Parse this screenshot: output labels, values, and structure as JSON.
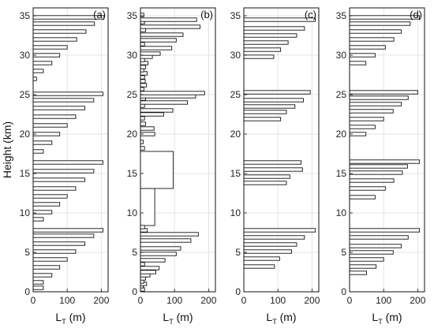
{
  "chart_data": [
    {
      "type": "bar",
      "orientation": "horizontal",
      "panel_label": "(a)",
      "xlabel_main": "L",
      "xlabel_sub": "T",
      "xlabel_unit": " (m)",
      "ylabel": "Height (km)",
      "xlim": [
        0,
        220
      ],
      "ylim": [
        0,
        36
      ],
      "xticks": [
        "0",
        "100",
        "200"
      ],
      "yticks": [
        "0",
        "5",
        "10",
        "15",
        "20",
        "25",
        "30",
        "35"
      ],
      "grid": true,
      "bar_height": 0.22,
      "bars": [
        {
          "y": 0.5,
          "value": 30
        },
        {
          "y": 1.2,
          "value": 30
        },
        {
          "y": 2.1,
          "value": 55
        },
        {
          "y": 3.1,
          "value": 78
        },
        {
          "y": 4.1,
          "value": 100
        },
        {
          "y": 5.1,
          "value": 125
        },
        {
          "y": 6.1,
          "value": 152
        },
        {
          "y": 7.1,
          "value": 178
        },
        {
          "y": 7.8,
          "value": 205
        },
        {
          "y": 9.2,
          "value": 30
        },
        {
          "y": 10.1,
          "value": 55
        },
        {
          "y": 11.1,
          "value": 78
        },
        {
          "y": 12.1,
          "value": 100
        },
        {
          "y": 13.1,
          "value": 125
        },
        {
          "y": 14.2,
          "value": 152
        },
        {
          "y": 15.3,
          "value": 178
        },
        {
          "y": 16.4,
          "value": 205
        },
        {
          "y": 17.8,
          "value": 30
        },
        {
          "y": 18.9,
          "value": 55
        },
        {
          "y": 20.0,
          "value": 78
        },
        {
          "y": 21.1,
          "value": 100
        },
        {
          "y": 22.2,
          "value": 125
        },
        {
          "y": 23.3,
          "value": 152
        },
        {
          "y": 24.3,
          "value": 178
        },
        {
          "y": 25.1,
          "value": 205
        },
        {
          "y": 27.0,
          "value": 10
        },
        {
          "y": 28.0,
          "value": 30
        },
        {
          "y": 29.0,
          "value": 55
        },
        {
          "y": 30.0,
          "value": 78
        },
        {
          "y": 31.0,
          "value": 100
        },
        {
          "y": 32.0,
          "value": 128
        },
        {
          "y": 33.0,
          "value": 155
        },
        {
          "y": 34.0,
          "value": 180
        },
        {
          "y": 34.8,
          "value": 208
        }
      ]
    },
    {
      "type": "bar",
      "orientation": "horizontal",
      "panel_label": "(b)",
      "xlabel_main": "L",
      "xlabel_sub": "T",
      "xlabel_unit": " (m)",
      "xlim": [
        0,
        220
      ],
      "ylim": [
        0,
        36
      ],
      "xticks": [
        "0",
        "100",
        "200"
      ],
      "yticks": [
        "0",
        "5",
        "10",
        "15",
        "20",
        "25",
        "30",
        "35"
      ],
      "grid": true,
      "bar_height": 0.22,
      "bars": [
        {
          "y": 0.3,
          "value": 12
        },
        {
          "y": 0.7,
          "value": 8
        },
        {
          "y": 1.0,
          "value": 18
        },
        {
          "y": 1.3,
          "value": 10
        },
        {
          "y": 1.7,
          "value": 15
        },
        {
          "y": 2.1,
          "value": 28
        },
        {
          "y": 2.5,
          "value": 45
        },
        {
          "y": 3.0,
          "value": 55
        },
        {
          "y": 3.5,
          "value": 12
        },
        {
          "y": 4.0,
          "value": 72
        },
        {
          "y": 4.8,
          "value": 105
        },
        {
          "y": 5.5,
          "value": 118
        },
        {
          "y": 6.5,
          "value": 148
        },
        {
          "y": 7.3,
          "value": 170
        },
        {
          "y": 7.8,
          "value": 20
        },
        {
          "y": 8.2,
          "value": 12
        },
        {
          "y": 18.2,
          "value": 12
        },
        {
          "y": 19.0,
          "value": 8
        },
        {
          "y": 20.0,
          "value": 42
        },
        {
          "y": 20.7,
          "value": 40
        },
        {
          "y": 21.3,
          "value": 15
        },
        {
          "y": 22.0,
          "value": 12
        },
        {
          "y": 22.5,
          "value": 68
        },
        {
          "y": 23.0,
          "value": 95
        },
        {
          "y": 23.6,
          "value": 12
        },
        {
          "y": 24.0,
          "value": 138
        },
        {
          "y": 24.5,
          "value": 15
        },
        {
          "y": 24.8,
          "value": 162
        },
        {
          "y": 25.2,
          "value": 188
        },
        {
          "y": 25.7,
          "value": 10
        },
        {
          "y": 26.2,
          "value": 18
        },
        {
          "y": 26.7,
          "value": 14
        },
        {
          "y": 27.2,
          "value": 12
        },
        {
          "y": 27.7,
          "value": 20
        },
        {
          "y": 28.1,
          "value": 10
        },
        {
          "y": 28.5,
          "value": 15
        },
        {
          "y": 29.0,
          "value": 22
        },
        {
          "y": 29.4,
          "value": 12
        },
        {
          "y": 29.8,
          "value": 35
        },
        {
          "y": 30.2,
          "value": 58
        },
        {
          "y": 30.9,
          "value": 92
        },
        {
          "y": 31.4,
          "value": 12
        },
        {
          "y": 31.9,
          "value": 105
        },
        {
          "y": 32.6,
          "value": 125
        },
        {
          "y": 33.2,
          "value": 15
        },
        {
          "y": 33.6,
          "value": 175
        },
        {
          "y": 34.2,
          "value": 12
        },
        {
          "y": 34.5,
          "value": 165
        },
        {
          "y": 35.1,
          "value": 10
        }
      ],
      "blocks": [
        {
          "y_from": 8.4,
          "y_to": 13.1,
          "value": 42
        },
        {
          "y_from": 13.1,
          "y_to": 17.8,
          "value": 96
        }
      ]
    },
    {
      "type": "bar",
      "orientation": "horizontal",
      "panel_label": "(c)",
      "xlabel_main": "L",
      "xlabel_sub": "T",
      "xlabel_unit": " (m)",
      "xlim": [
        0,
        220
      ],
      "ylim": [
        0,
        36
      ],
      "xticks": [
        "0",
        "100",
        "200"
      ],
      "yticks": [
        "0",
        "5",
        "10",
        "15",
        "20",
        "25",
        "30",
        "35"
      ],
      "grid": true,
      "bar_height": 0.22,
      "bars": [
        {
          "y": 3.2,
          "value": 90
        },
        {
          "y": 4.2,
          "value": 105
        },
        {
          "y": 5.1,
          "value": 140
        },
        {
          "y": 6.0,
          "value": 155
        },
        {
          "y": 6.9,
          "value": 178
        },
        {
          "y": 7.8,
          "value": 210
        },
        {
          "y": 13.8,
          "value": 125
        },
        {
          "y": 14.6,
          "value": 135
        },
        {
          "y": 15.5,
          "value": 172
        },
        {
          "y": 16.4,
          "value": 168
        },
        {
          "y": 21.9,
          "value": 108
        },
        {
          "y": 22.8,
          "value": 125
        },
        {
          "y": 23.5,
          "value": 150
        },
        {
          "y": 24.3,
          "value": 175
        },
        {
          "y": 25.3,
          "value": 195
        },
        {
          "y": 29.8,
          "value": 88
        },
        {
          "y": 30.7,
          "value": 108
        },
        {
          "y": 31.6,
          "value": 130
        },
        {
          "y": 32.5,
          "value": 155
        },
        {
          "y": 33.4,
          "value": 178
        },
        {
          "y": 34.5,
          "value": 210
        }
      ]
    },
    {
      "type": "bar",
      "orientation": "horizontal",
      "panel_label": "(d)",
      "xlabel_main": "L",
      "xlabel_sub": "T",
      "xlabel_unit": " (m)",
      "xlim": [
        0,
        220
      ],
      "ylim": [
        0,
        36
      ],
      "xticks": [
        "0",
        "100",
        "200"
      ],
      "yticks": [
        "0",
        "5",
        "10",
        "15",
        "20",
        "25",
        "30",
        "35"
      ],
      "grid": true,
      "bar_height": 0.22,
      "bars": [
        {
          "y": 2.4,
          "value": 50
        },
        {
          "y": 3.2,
          "value": 78
        },
        {
          "y": 4.1,
          "value": 100
        },
        {
          "y": 5.0,
          "value": 128
        },
        {
          "y": 5.8,
          "value": 152
        },
        {
          "y": 6.9,
          "value": 172
        },
        {
          "y": 7.8,
          "value": 205
        },
        {
          "y": 12.0,
          "value": 75
        },
        {
          "y": 13.1,
          "value": 105
        },
        {
          "y": 14.1,
          "value": 130
        },
        {
          "y": 15.1,
          "value": 155
        },
        {
          "y": 15.9,
          "value": 170
        },
        {
          "y": 16.5,
          "value": 205
        },
        {
          "y": 20.0,
          "value": 48
        },
        {
          "y": 20.9,
          "value": 75
        },
        {
          "y": 21.9,
          "value": 100
        },
        {
          "y": 22.9,
          "value": 128
        },
        {
          "y": 23.8,
          "value": 152
        },
        {
          "y": 24.6,
          "value": 172
        },
        {
          "y": 25.3,
          "value": 200
        },
        {
          "y": 29.0,
          "value": 48
        },
        {
          "y": 30.0,
          "value": 75
        },
        {
          "y": 31.0,
          "value": 105
        },
        {
          "y": 32.0,
          "value": 130
        },
        {
          "y": 33.0,
          "value": 152
        },
        {
          "y": 34.0,
          "value": 178
        },
        {
          "y": 34.8,
          "value": 205
        }
      ]
    }
  ]
}
